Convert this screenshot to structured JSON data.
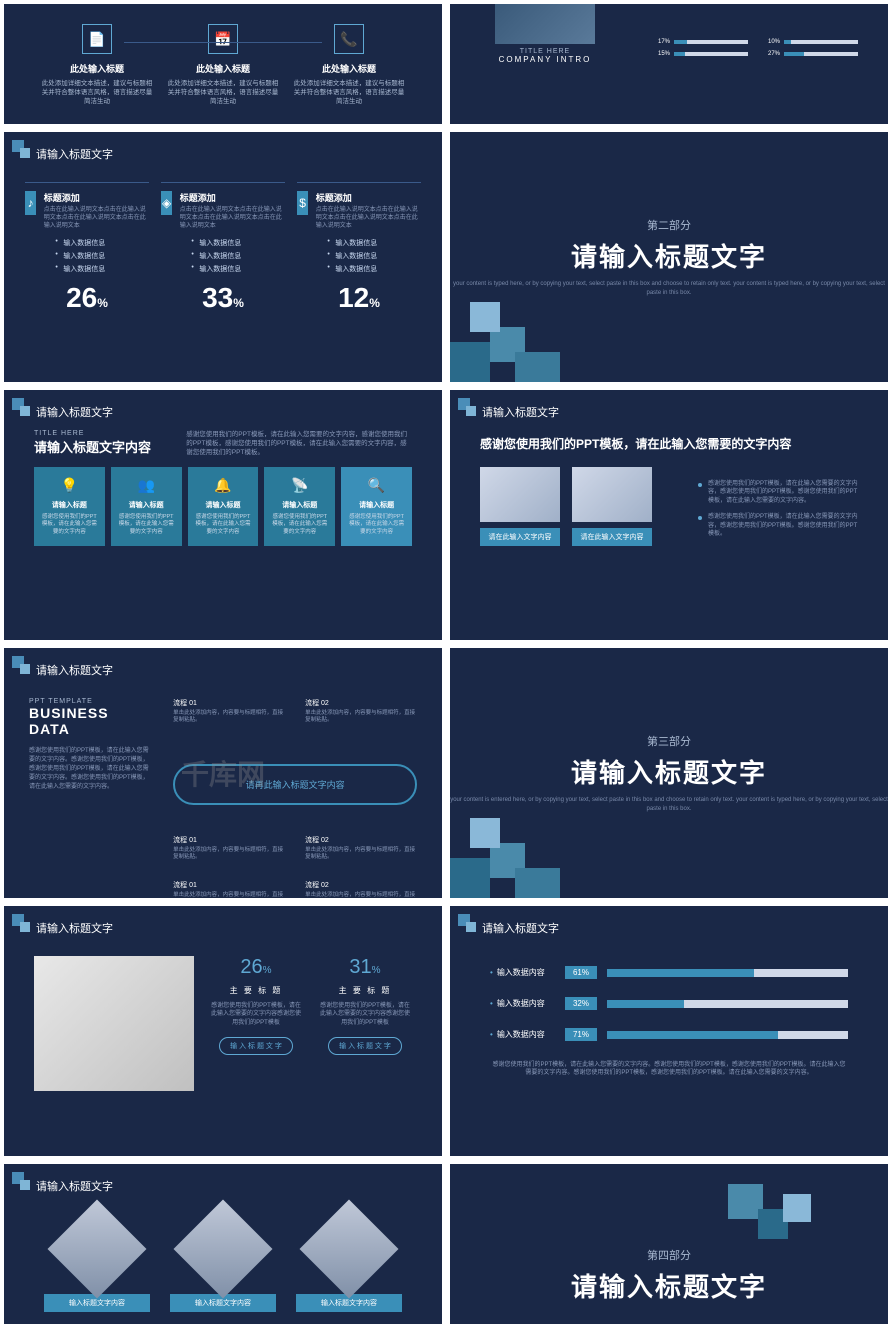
{
  "colors": {
    "bg": "#1a2847",
    "accent": "#3a8fb8",
    "light": "#5fa8d3",
    "muted": "#8898b8"
  },
  "common": {
    "slide_title": "请输入标题文字"
  },
  "s1": {
    "icons": [
      {
        "glyph": "📄",
        "label": "此处输入标题",
        "desc": "此处添加详细文本描述，建议与标题相关并符合整体语言风格，语言描述尽量简洁生动"
      },
      {
        "glyph": "📅",
        "label": "此处输入标题",
        "desc": "此处添加详细文本描述，建议与标题相关并符合整体语言风格，语言描述尽量简洁生动"
      },
      {
        "glyph": "📞",
        "label": "此处输入标题",
        "desc": "此处添加详细文本描述，建议与标题相关并符合整体语言风格，语言描述尽量简洁生动"
      }
    ],
    "caption1": "TITLE HERE",
    "caption2": "COMPANY INTRO",
    "bars": [
      {
        "label": "17%",
        "pct": 17
      },
      {
        "label": "10%",
        "pct": 10
      },
      {
        "label": "15%",
        "pct": 15
      },
      {
        "label": "27%",
        "pct": 27
      }
    ]
  },
  "s2": {
    "cols": [
      {
        "icon": "♪",
        "title": "标题添加",
        "text": "点击在此输入说明文本点击在此输入说明文本点击在此输入说明文本点击在此输入说明文本",
        "items": [
          "输入数据信息",
          "输入数据信息",
          "输入数据信息"
        ],
        "pct": "26"
      },
      {
        "icon": "◈",
        "title": "标题添加",
        "text": "点击在此输入说明文本点击在此输入说明文本点击在此输入说明文本点击在此输入说明文本",
        "items": [
          "输入数据信息",
          "输入数据信息",
          "输入数据信息"
        ],
        "pct": "33"
      },
      {
        "icon": "$",
        "title": "标题添加",
        "text": "点击在此输入说明文本点击在此输入说明文本点击在此输入说明文本点击在此输入说明文本",
        "items": [
          "输入数据信息",
          "输入数据信息",
          "输入数据信息"
        ],
        "pct": "12"
      }
    ]
  },
  "sec2": {
    "sub": "第二部分",
    "main": "请输入标题文字",
    "desc": "your content is typed here, or by copying your text, select paste in this box and choose to retain only text.\nyour content is typed here, or by copying your text, select paste in this box."
  },
  "s4": {
    "sub": "TITLE HERE",
    "title": "请输入标题文字内容",
    "desc": "感谢您使用我们的PPT模板，请在此输入您需要的文字内容，感谢您使用我们的PPT模板，感谢您使用我们的PPT模板，请在此输入您需要的文字内容，感谢您使用我们的PPT模板。",
    "boxes": [
      {
        "icon": "💡",
        "title": "请输入标题",
        "desc": "感谢您使用我们的PPT模板，请在此输入您需要的文字内容"
      },
      {
        "icon": "👥",
        "title": "请输入标题",
        "desc": "感谢您使用我们的PPT模板，请在此输入您需要的文字内容"
      },
      {
        "icon": "🔔",
        "title": "请输入标题",
        "desc": "感谢您使用我们的PPT模板，请在此输入您需要的文字内容"
      },
      {
        "icon": "📡",
        "title": "请输入标题",
        "desc": "感谢您使用我们的PPT模板，请在此输入您需要的文字内容"
      },
      {
        "icon": "🔍",
        "title": "请输入标题",
        "desc": "感谢您使用我们的PPT模板，请在此输入您需要的文字内容"
      }
    ]
  },
  "s5": {
    "title": "感谢您使用我们的PPT模板，请在此输入您需要的文字内容",
    "btn1": "请在此输入文字内容",
    "btn2": "请在此输入文字内容",
    "bullets": [
      "感谢您使用我们的PPT模板，请在此输入您需要的文字内容，感谢您使用我们的PPT模板。感谢您使用我们的PPT模板，请在此输入您需要的文字内容。",
      "感谢您使用我们的PPT模板，请在此输入您需要的文字内容，感谢您使用我们的PPT模板。感谢您使用我们的PPT模板。"
    ]
  },
  "s6": {
    "sub": "PPT TEMPLATE",
    "title": "BUSINESS DATA",
    "desc": "感谢您使用我们的PPT模板，请在此输入您需要的文字内容。感谢您使用我们的PPT模板，感谢您使用我们的PPT模板，请在此输入您需要的文字内容。感谢您使用我们的PPT模板，请在此输入您需要的文字内容。",
    "pill": "请再此输入标题文字内容",
    "flows": [
      {
        "label": "流程 01",
        "desc": "单击此处添加内容，内容要与标题相符，直接复制粘贴。"
      },
      {
        "label": "流程 02",
        "desc": "单击此处添加内容，内容要与标题相符，直接复制粘贴。"
      },
      {
        "label": "流程 01",
        "desc": "单击此处添加内容，内容要与标题相符，直接复制粘贴。"
      },
      {
        "label": "流程 02",
        "desc": "单击此处添加内容，内容要与标题相符，直接复制粘贴。"
      },
      {
        "label": "流程 01",
        "desc": "单击此处添加内容，内容要与标题相符，直接复制粘贴。"
      },
      {
        "label": "流程 02",
        "desc": "单击此处添加内容，内容要与标题相符，直接复制粘贴。"
      }
    ]
  },
  "sec3": {
    "sub": "第三部分",
    "main": "请输入标题文字",
    "desc": "your content is entered here, or by copying your text, select paste in this box and choose to retain only text.\nyour content is typed here, or by copying your text, select paste in this box."
  },
  "s8": {
    "cols": [
      {
        "pct": "26",
        "label": "主 要 标 题",
        "desc": "感谢您使用我们的PPT模板，请在此输入您需要的文字内容感谢您使用我们的PPT模板",
        "btn": "输 入 标 题 文 字"
      },
      {
        "pct": "31",
        "label": "主 要 标 题",
        "desc": "感谢您使用我们的PPT模板，请在此输入您需要的文字内容感谢您使用我们的PPT模板",
        "btn": "输 入 标 题 文 字"
      }
    ]
  },
  "s9": {
    "rows": [
      {
        "label": "输入数据内容",
        "pct": 61
      },
      {
        "label": "输入数据内容",
        "pct": 32
      },
      {
        "label": "输入数据内容",
        "pct": 71
      }
    ],
    "foot": "感谢您使用我们的PPT模板，请在此输入您需要的文字内容。感谢您使用我们的PPT模板，感谢您使用我们的PPT模板。请在此输入您需要的文字内容。感谢您使用我们的PPT模板，感谢您使用我们的PPT模板。请在此输入您需要的文字内容。"
  },
  "s10": {
    "btn": "输入标题文字内容"
  },
  "sec4": {
    "sub": "第四部分",
    "main": "请输入标题文字"
  },
  "watermark": "千库网\n588ku.com"
}
